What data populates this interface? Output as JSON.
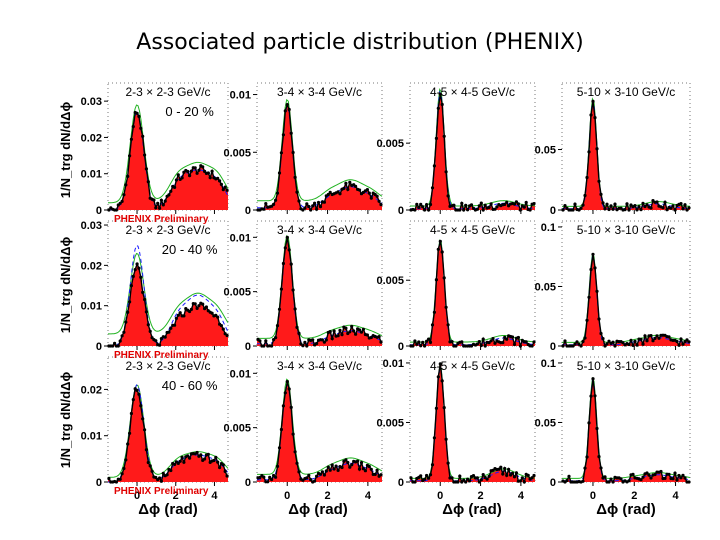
{
  "title": "Associated particle distribution (PHENIX)",
  "y_axis_label": "1/N_trg dN/dΔϕ",
  "x_axis_label": "Δϕ (rad)",
  "preliminary_label": "PHENIX Preliminary",
  "colors": {
    "fill": "#ff1a1a",
    "data": "#000000",
    "model_blue": "#1a1aff",
    "model_green": "#22b322",
    "preliminary": "#e00000"
  },
  "chart_data": {
    "type": "area",
    "title": "Associated particle distribution (PHENIX)",
    "xlabel": "Δϕ (rad)",
    "ylabel": "1/N_trg dN/dΔϕ",
    "xlim": [
      -1.5,
      4.7
    ],
    "xticks": [
      0,
      2,
      4
    ],
    "columns": [
      "2-3 × 2-3 GeV/c",
      "3-4 × 3-4 GeV/c",
      "4-5 × 4-5 GeV/c",
      "5-10 × 3-10 GeV/c"
    ],
    "rows": [
      "0 - 20 %",
      "20 - 40 %",
      "40 - 60 %"
    ],
    "panels": [
      {
        "id": "r0c0",
        "row": 0,
        "col": 0,
        "pt_label": "2-3 × 2-3 GeV/c",
        "centrality": "0 - 20 %",
        "ylim": [
          0,
          0.035
        ],
        "yticks": [
          0,
          0.01,
          0.02,
          0.03
        ],
        "ytick_labels": [
          "0",
          "0.01",
          "0.02",
          "0.03"
        ],
        "near_peak": 0.027,
        "near_width": 0.35,
        "away_peak": 0.011,
        "away_width": 0.9,
        "away_shape": "broad",
        "base": 0.0,
        "blue_scale": 1.0,
        "green_offset": 0.002,
        "show_xticks": false
      },
      {
        "id": "r0c1",
        "row": 0,
        "col": 1,
        "pt_label": "3-4 × 3-4 GeV/c",
        "centrality": "",
        "ylim": [
          0,
          0.011
        ],
        "yticks": [
          0,
          0.005,
          0.01
        ],
        "ytick_labels": [
          "0",
          "0.005",
          "0.01"
        ],
        "near_peak": 0.0088,
        "near_width": 0.25,
        "away_peak": 0.0018,
        "away_width": 0.7,
        "away_shape": "broad",
        "base": 0.0002,
        "blue_scale": 1.0,
        "green_offset": 0.0006,
        "show_xticks": false
      },
      {
        "id": "r0c2",
        "row": 0,
        "col": 2,
        "pt_label": "4-5 × 4-5 GeV/c",
        "centrality": "",
        "ylim": [
          0,
          0.0095
        ],
        "yticks": [
          0,
          0.005
        ],
        "ytick_labels": [
          "0",
          "0.005"
        ],
        "near_peak": 0.0088,
        "near_width": 0.2,
        "away_peak": 0.0004,
        "away_width": 0.6,
        "away_shape": "flat",
        "base": 0.0001,
        "blue_scale": 1.0,
        "green_offset": 0.0002,
        "show_xticks": false
      },
      {
        "id": "r0c3",
        "row": 0,
        "col": 3,
        "pt_label": "5-10 × 3-10 GeV/c",
        "centrality": "",
        "ylim": [
          0,
          0.105
        ],
        "yticks": [
          0,
          0.05
        ],
        "ytick_labels": [
          "0",
          "0.05"
        ],
        "near_peak": 0.09,
        "near_width": 0.18,
        "away_peak": 0.004,
        "away_width": 0.6,
        "away_shape": "flat",
        "base": 0.001,
        "blue_scale": 1.0,
        "green_offset": 0.002,
        "show_xticks": false
      },
      {
        "id": "r1c0",
        "row": 1,
        "col": 0,
        "pt_label": "2-3 × 2-3 GeV/c",
        "centrality": "20 - 40 %",
        "ylim": [
          0,
          0.031
        ],
        "yticks": [
          0,
          0.01,
          0.02,
          0.03
        ],
        "ytick_labels": [
          "0",
          "0.01",
          "0.02",
          "0.03"
        ],
        "near_peak": 0.02,
        "near_width": 0.35,
        "away_peak": 0.01,
        "away_width": 0.8,
        "away_shape": "broad",
        "base": 0.0,
        "blue_scale": 1.25,
        "green_offset": 0.003,
        "show_xticks": false
      },
      {
        "id": "r1c1",
        "row": 1,
        "col": 1,
        "pt_label": "3-4 × 3-4 GeV/c",
        "centrality": "",
        "ylim": [
          0,
          0.0115
        ],
        "yticks": [
          0,
          0.005,
          0.01
        ],
        "ytick_labels": [
          "0",
          "0.005",
          "0.01"
        ],
        "near_peak": 0.0095,
        "near_width": 0.25,
        "away_peak": 0.0012,
        "away_width": 0.7,
        "away_shape": "broad",
        "base": 0.0002,
        "blue_scale": 1.0,
        "green_offset": 0.0005,
        "show_xticks": false
      },
      {
        "id": "r1c2",
        "row": 1,
        "col": 2,
        "pt_label": "4-5 × 4-5 GeV/c",
        "centrality": "",
        "ylim": [
          0,
          0.0095
        ],
        "yticks": [
          0,
          0.005
        ],
        "ytick_labels": [
          "0",
          "0.005"
        ],
        "near_peak": 0.0078,
        "near_width": 0.2,
        "away_peak": 0.0005,
        "away_width": 0.6,
        "away_shape": "flat",
        "base": 0.0001,
        "blue_scale": 1.0,
        "green_offset": 0.0002,
        "show_xticks": false
      },
      {
        "id": "r1c3",
        "row": 1,
        "col": 3,
        "pt_label": "5-10 × 3-10 GeV/c",
        "centrality": "",
        "ylim": [
          0,
          0.105
        ],
        "yticks": [
          0,
          0.05,
          0.1
        ],
        "ytick_labels": [
          "0",
          "0.05",
          "0.1"
        ],
        "near_peak": 0.075,
        "near_width": 0.18,
        "away_peak": 0.006,
        "away_width": 0.6,
        "away_shape": "broad",
        "base": 0.001,
        "blue_scale": 1.0,
        "green_offset": 0.002,
        "show_xticks": false
      },
      {
        "id": "r2c0",
        "row": 2,
        "col": 0,
        "pt_label": "2-3 × 2-3 GeV/c",
        "centrality": "40 - 60 %",
        "ylim": [
          0,
          0.027
        ],
        "yticks": [
          0,
          0.01,
          0.02
        ],
        "ytick_labels": [
          "0",
          "0.01",
          "0.02"
        ],
        "near_peak": 0.02,
        "near_width": 0.35,
        "away_peak": 0.0055,
        "away_width": 0.9,
        "away_shape": "broad",
        "base": 0.0,
        "blue_scale": 1.05,
        "green_offset": 0.001,
        "show_xticks": true
      },
      {
        "id": "r2c1",
        "row": 2,
        "col": 1,
        "pt_label": "3-4 × 3-4 GeV/c",
        "centrality": "",
        "ylim": [
          0,
          0.0115
        ],
        "yticks": [
          0,
          0.005,
          0.01
        ],
        "ytick_labels": [
          "0",
          "0.005",
          "0.01"
        ],
        "near_peak": 0.0088,
        "near_width": 0.25,
        "away_peak": 0.0015,
        "away_width": 0.7,
        "away_shape": "broad",
        "base": 0.0002,
        "blue_scale": 1.0,
        "green_offset": 0.0005,
        "show_xticks": true
      },
      {
        "id": "r2c2",
        "row": 2,
        "col": 2,
        "pt_label": "4-5 × 4-5 GeV/c",
        "centrality": "",
        "ylim": [
          0,
          0.0105
        ],
        "yticks": [
          0,
          0.005,
          0.01
        ],
        "ytick_labels": [
          "0",
          "0.005",
          "0.01"
        ],
        "near_peak": 0.0095,
        "near_width": 0.2,
        "away_peak": 0.0008,
        "away_width": 0.6,
        "away_shape": "flat",
        "base": 0.0001,
        "blue_scale": 1.0,
        "green_offset": 0.0002,
        "show_xticks": true
      },
      {
        "id": "r2c3",
        "row": 2,
        "col": 3,
        "pt_label": "5-10 × 3-10 GeV/c",
        "centrality": "",
        "ylim": [
          0,
          0.105
        ],
        "yticks": [
          0,
          0.05,
          0.1
        ],
        "ytick_labels": [
          "0",
          "0.05",
          "0.1"
        ],
        "near_peak": 0.085,
        "near_width": 0.18,
        "away_peak": 0.005,
        "away_width": 0.6,
        "away_shape": "broad",
        "base": 0.001,
        "blue_scale": 1.0,
        "green_offset": 0.002,
        "show_xticks": true
      }
    ]
  }
}
